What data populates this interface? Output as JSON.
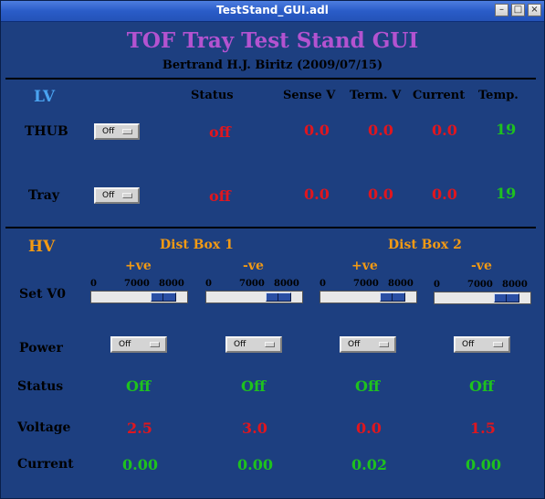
{
  "window": {
    "title": "TestStand_GUI.adl"
  },
  "header": {
    "title": "TOF Tray Test Stand GUI",
    "author": "Bertrand H.J. Biritz (2009/07/15)"
  },
  "lv": {
    "section_label": "LV",
    "columns": {
      "status": "Status",
      "sense_v": "Sense V",
      "term_v": "Term. V",
      "current": "Current",
      "temp": "Temp."
    },
    "rows": [
      {
        "label": "THUB",
        "menu": "Off",
        "status": "off",
        "sense_v": "0.0",
        "term_v": "0.0",
        "current": "0.0",
        "temp": "19"
      },
      {
        "label": "Tray",
        "menu": "Off",
        "status": "off",
        "sense_v": "0.0",
        "term_v": "0.0",
        "current": "0.0",
        "temp": "19"
      }
    ]
  },
  "hv": {
    "section_label": "HV",
    "boxes": [
      "Dist Box 1",
      "Dist Box 2"
    ],
    "polarity": [
      "+ve",
      "-ve",
      "+ve",
      "-ve"
    ],
    "row_labels": {
      "set_v0": "Set V0",
      "power": "Power",
      "status": "Status",
      "voltage": "Voltage",
      "current": "Current"
    },
    "slider_ticks": {
      "min": "0",
      "mid": "7000",
      "max": "8000"
    },
    "slider_levels": [
      0.75,
      0.75,
      0.75,
      0.75
    ],
    "channels": [
      {
        "power": "Off",
        "status": "Off",
        "voltage": "2.5",
        "current": "0.00"
      },
      {
        "power": "Off",
        "status": "Off",
        "voltage": "3.0",
        "current": "0.00"
      },
      {
        "power": "Off",
        "status": "Off",
        "voltage": "0.0",
        "current": "0.02"
      },
      {
        "power": "Off",
        "status": "Off",
        "voltage": "1.5",
        "current": "0.00"
      }
    ]
  },
  "colors": {
    "background": "#1d3f80",
    "title": "#b353d0",
    "lv_label": "#4aa3f0",
    "hv_label": "#f29a14",
    "alarm": "#e0161e",
    "ok": "#1ec21e"
  }
}
